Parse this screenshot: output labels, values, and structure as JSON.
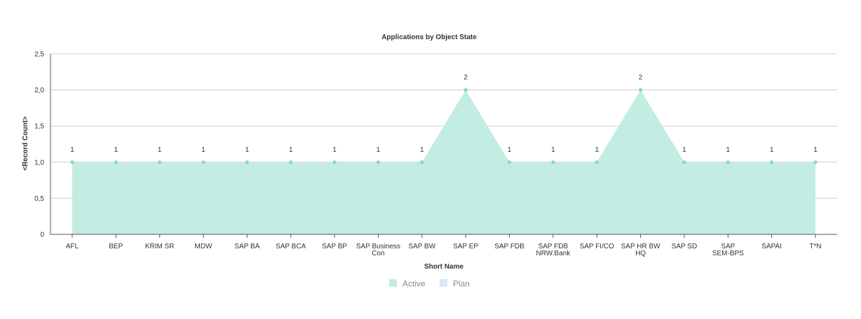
{
  "chart_data": {
    "type": "area",
    "title": "Applications by Object State",
    "xlabel": "Short Name",
    "ylabel": "<Record Count>",
    "categories": [
      [
        "AFL"
      ],
      [
        "BEP"
      ],
      [
        "KRIM SR"
      ],
      [
        "MDW"
      ],
      [
        "SAP BA"
      ],
      [
        "SAP BCA"
      ],
      [
        "SAP BP"
      ],
      [
        "SAP Business",
        "Con"
      ],
      [
        "SAP BW"
      ],
      [
        "SAP EP"
      ],
      [
        "SAP FDB"
      ],
      [
        "SAP FDB",
        "NRW.Bank"
      ],
      [
        "SAP FI/CO"
      ],
      [
        "SAP HR BW",
        "HQ"
      ],
      [
        "SAP SD"
      ],
      [
        "SAP",
        "SEM-BPS"
      ],
      [
        "SAPAI"
      ],
      [
        "T*N"
      ]
    ],
    "series": [
      {
        "name": "Active",
        "color": "#c3ece3",
        "point_color": "#7fdcc0",
        "values": [
          1,
          1,
          1,
          1,
          1,
          1,
          1,
          1,
          1,
          2,
          1,
          1,
          1,
          2,
          1,
          1,
          1,
          1
        ]
      },
      {
        "name": "Plan",
        "color": "#dbe6f7",
        "point_color": "#c9d8f2",
        "values": [
          1,
          null,
          null,
          null,
          null,
          null,
          null,
          null,
          null,
          null,
          null,
          null,
          null,
          null,
          null,
          null,
          null,
          null
        ]
      }
    ],
    "data_labels": [
      1,
      1,
      1,
      1,
      1,
      1,
      1,
      1,
      1,
      2,
      1,
      1,
      1,
      2,
      1,
      1,
      1,
      1
    ],
    "ylim": [
      0,
      2.5
    ],
    "yticks": [
      "0",
      "0,5",
      "1,0",
      "1,5",
      "2,0",
      "2,5"
    ],
    "ytick_values": [
      0,
      0.5,
      1.0,
      1.5,
      2.0,
      2.5
    ],
    "grid": true,
    "legend_position": "bottom"
  }
}
